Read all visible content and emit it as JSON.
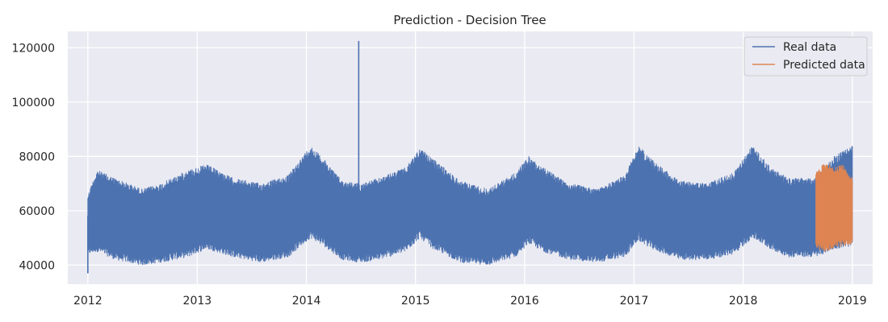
{
  "chart_data": {
    "type": "line",
    "title": "Prediction - Decision Tree",
    "xlabel": "",
    "ylabel": "",
    "x_ticks": [
      "2012",
      "2013",
      "2014",
      "2015",
      "2016",
      "2017",
      "2018",
      "2019"
    ],
    "y_ticks": [
      40000,
      60000,
      80000,
      100000,
      120000
    ],
    "xlim": [
      "2011-10-26",
      "2019-03-10"
    ],
    "ylim": [
      33000,
      126000
    ],
    "grid": true,
    "legend_position": "top-right",
    "series": [
      {
        "name": "Real data",
        "color": "#4c72b0",
        "x_range": [
          "2012-01-01",
          "2019-01-01"
        ],
        "envelope": {
          "dates": [
            "2012-01-01",
            "2012-02-01",
            "2012-04-01",
            "2012-07-01",
            "2012-09-01",
            "2012-12-01",
            "2013-02-01",
            "2013-05-01",
            "2013-08-01",
            "2013-11-01",
            "2014-01-15",
            "2014-03-01",
            "2014-05-01",
            "2014-07-01",
            "2014-09-01",
            "2014-12-01",
            "2015-01-15",
            "2015-03-01",
            "2015-06-01",
            "2015-09-01",
            "2015-12-01",
            "2016-01-15",
            "2016-03-01",
            "2016-06-01",
            "2016-09-01",
            "2016-12-01",
            "2017-01-15",
            "2017-03-01",
            "2017-06-01",
            "2017-09-01",
            "2017-12-01",
            "2018-02-01",
            "2018-04-01",
            "2018-06-01",
            "2018-09-01",
            "2018-11-01",
            "2019-01-01"
          ],
          "upper": [
            66000,
            75000,
            72000,
            68000,
            70000,
            75000,
            77000,
            72000,
            70000,
            73000,
            84000,
            79000,
            71000,
            70000,
            72000,
            76000,
            83000,
            79000,
            71000,
            68000,
            74000,
            80000,
            76000,
            70000,
            68000,
            73000,
            84000,
            79000,
            71000,
            70000,
            74000,
            84000,
            76000,
            72000,
            72000,
            80000,
            84000
          ],
          "lower": [
            44000,
            45000,
            42000,
            40000,
            41000,
            43000,
            46000,
            43000,
            41000,
            43000,
            50000,
            47000,
            42000,
            41000,
            42000,
            45000,
            50000,
            46000,
            41000,
            40000,
            43000,
            48000,
            45000,
            42000,
            41000,
            43000,
            49000,
            46000,
            42000,
            42000,
            44000,
            50000,
            46000,
            43000,
            43000,
            46000,
            47000
          ]
        },
        "spikes": [
          {
            "date": "2012-01-01",
            "value": 37000
          },
          {
            "date": "2014-06-25",
            "value": 122500
          }
        ]
      },
      {
        "name": "Predicted data",
        "color": "#dd8452",
        "x_range": [
          "2018-09-01",
          "2019-01-01"
        ],
        "envelope": {
          "dates": [
            "2018-09-01",
            "2018-10-01",
            "2018-11-01",
            "2018-12-01",
            "2019-01-01"
          ],
          "upper": [
            74000,
            78000,
            76000,
            77000,
            72000
          ],
          "lower": [
            46000,
            45000,
            46000,
            47000,
            48000
          ]
        }
      }
    ]
  }
}
